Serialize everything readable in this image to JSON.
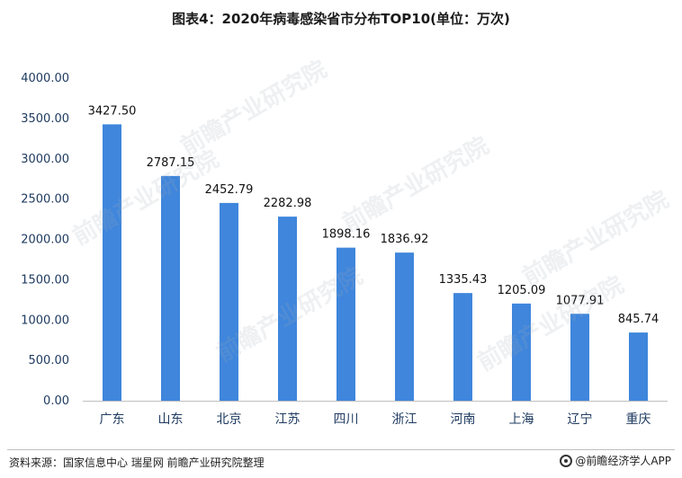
{
  "title": "图表4：2020年病毒感染省市分布TOP10(单位：万次)",
  "footer": {
    "source": "资料来源：国家信息中心 瑞星网 前瞻产业研究院整理",
    "app_label": "@前瞻经济学人APP"
  },
  "watermark": {
    "text": "前瞻产业研究院"
  },
  "colors": {
    "bar": "#3f86dc",
    "axis": "#bfbfbf",
    "tick_text": "#1f3b60",
    "category_text": "#1f3b60"
  },
  "chart_data": {
    "type": "bar",
    "title": "图表4：2020年病毒感染省市分布TOP10(单位：万次)",
    "categories": [
      "广东",
      "山东",
      "北京",
      "江苏",
      "四川",
      "浙江",
      "河南",
      "上海",
      "辽宁",
      "重庆"
    ],
    "values": [
      3427.5,
      2787.15,
      2452.79,
      2282.98,
      1898.16,
      1836.92,
      1335.43,
      1205.09,
      1077.91,
      845.74
    ],
    "value_labels": [
      "3427.50",
      "2787.15",
      "2452.79",
      "2282.98",
      "1898.16",
      "1836.92",
      "1335.43",
      "1205.09",
      "1077.91",
      "845.74"
    ],
    "y_ticks": [
      "0.00",
      "500.00",
      "1000.00",
      "1500.00",
      "2000.00",
      "2500.00",
      "3000.00",
      "3500.00",
      "4000.00"
    ],
    "ylim": [
      0,
      4000
    ],
    "xlabel": "",
    "ylabel": "",
    "grid": false,
    "legend": "none"
  }
}
